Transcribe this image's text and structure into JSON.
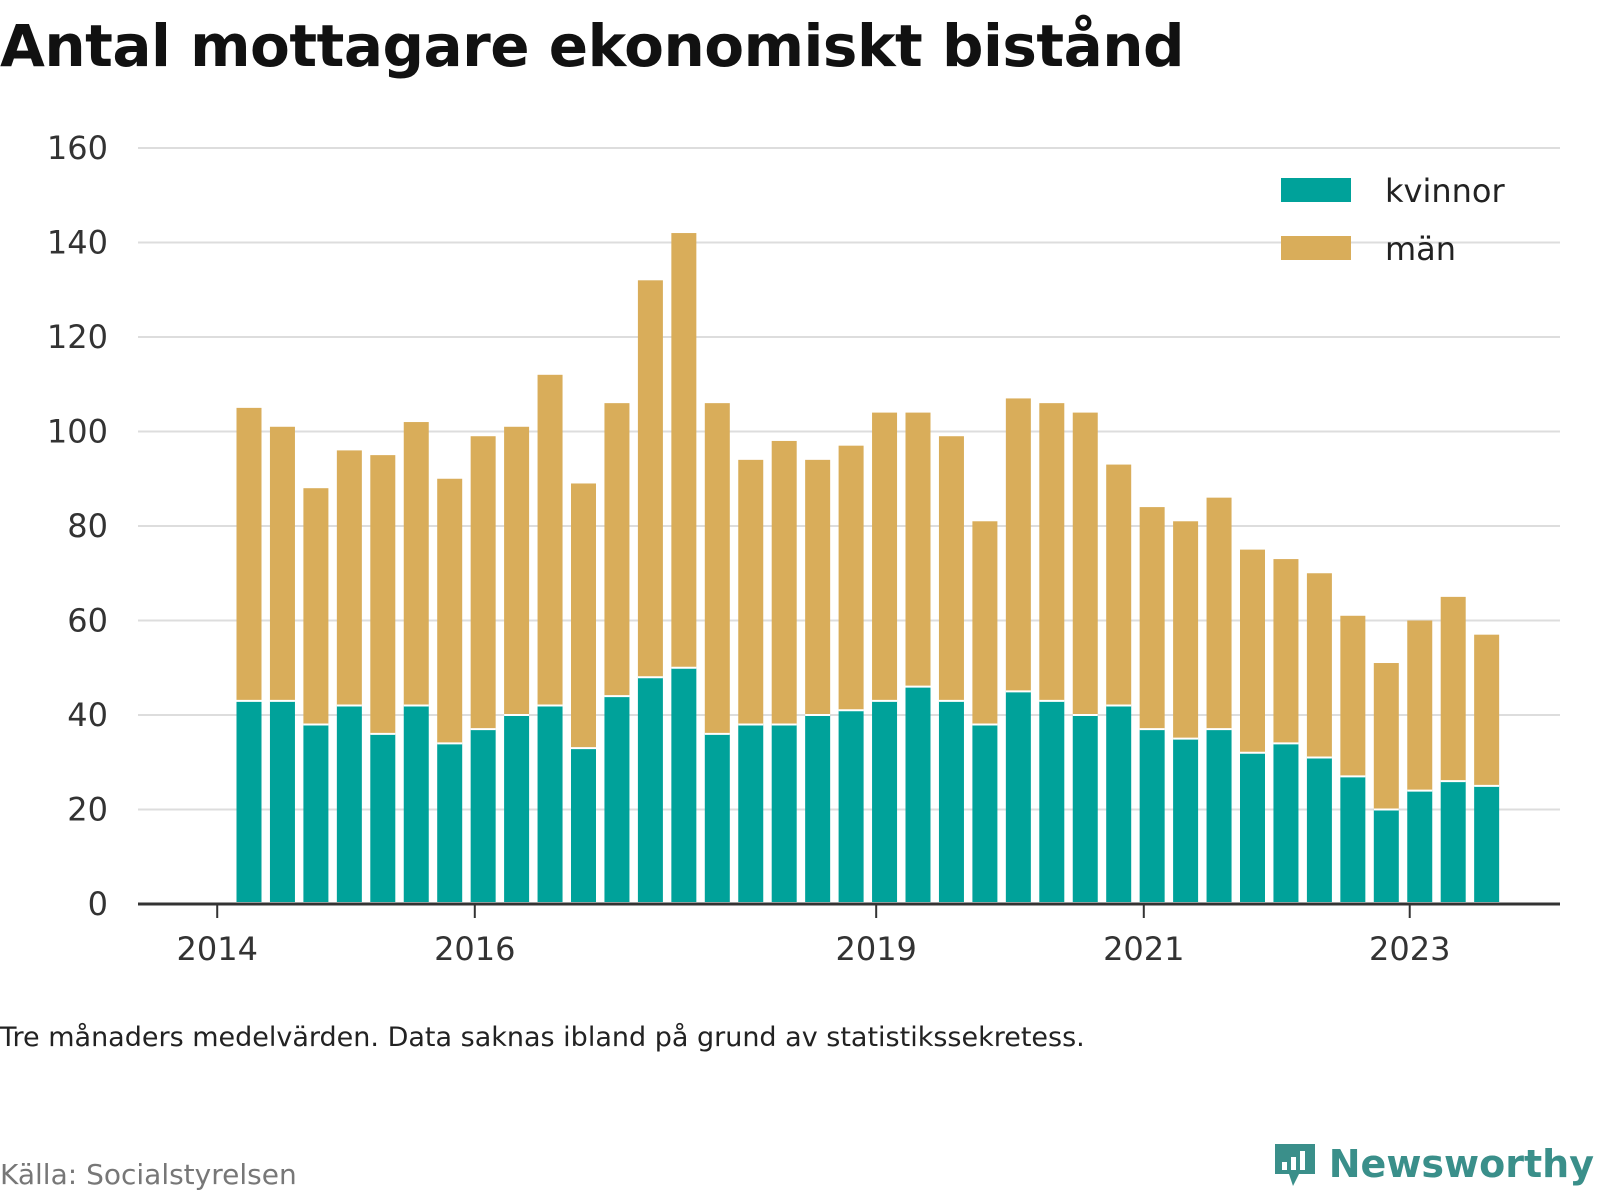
{
  "title": "Antal mottagare ekonomiskt bistånd",
  "note": "Tre månaders medelvärden. Data saknas ibland på grund av statistikssekretess.",
  "source": "Källa: Socialstyrelsen",
  "brand": {
    "name": "Newsworthy",
    "icon": "newsworthy-chart-logo-icon"
  },
  "colors": {
    "kvinnor": "#00a29a",
    "man": "#d9ad5a",
    "grid": "#dddddd",
    "axis": "#333333"
  },
  "chart_data": {
    "type": "bar",
    "stacked": true,
    "title": "Antal mottagare ekonomiskt bistånd",
    "xlabel": "",
    "ylabel": "",
    "ylim": [
      0,
      160
    ],
    "yticks": [
      0,
      20,
      40,
      60,
      80,
      100,
      120,
      140,
      160
    ],
    "xticks": [
      "2014",
      "2016",
      "2019",
      "2021",
      "2023"
    ],
    "legend": "top-right",
    "grid": true,
    "categories": [
      "2014 Q2",
      "2014 Q3",
      "2014 Q4",
      "2015 Q1",
      "2015 Q2",
      "2015 Q3",
      "2015 Q4",
      "2016 Q1",
      "2016 Q2",
      "2016 Q3",
      "2016 Q4",
      "2017 Q1",
      "2017 Q2",
      "2017 Q3",
      "2017 Q4",
      "2018 Q1",
      "2018 Q2",
      "2018 Q3",
      "2018 Q4",
      "2019 Q1",
      "2019 Q2",
      "2019 Q3",
      "2019 Q4",
      "2020 Q1",
      "2020 Q2",
      "2020 Q3",
      "2020 Q4",
      "2021 Q1",
      "2021 Q2",
      "2021 Q3",
      "2021 Q4",
      "2022 Q1",
      "2022 Q2",
      "2022 Q3",
      "2022 Q4",
      "2023 Q1",
      "2023 Q2",
      "2023 Q3"
    ],
    "series": [
      {
        "name": "kvinnor",
        "values": [
          43,
          43,
          38,
          42,
          36,
          42,
          34,
          37,
          40,
          42,
          33,
          44,
          48,
          50,
          36,
          38,
          38,
          40,
          41,
          43,
          46,
          43,
          38,
          45,
          43,
          40,
          42,
          37,
          35,
          37,
          32,
          34,
          31,
          27,
          20,
          24,
          26,
          25
        ]
      },
      {
        "name": "män",
        "values": [
          62,
          58,
          50,
          54,
          59,
          60,
          56,
          62,
          61,
          70,
          56,
          62,
          84,
          92,
          70,
          56,
          60,
          54,
          56,
          61,
          58,
          56,
          43,
          62,
          63,
          64,
          51,
          47,
          46,
          49,
          43,
          39,
          39,
          34,
          31,
          36,
          39,
          32
        ]
      }
    ]
  }
}
